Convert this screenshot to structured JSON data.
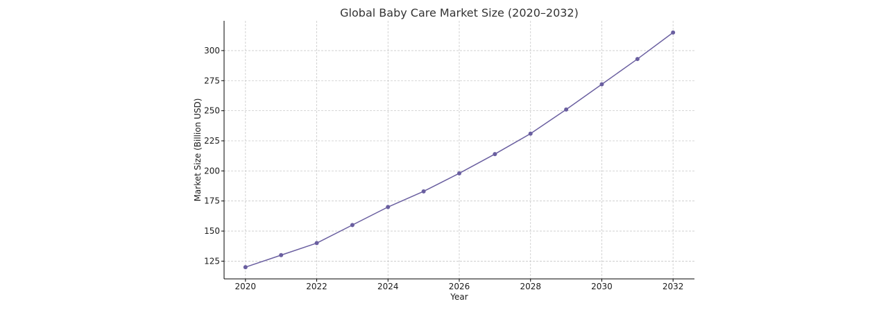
{
  "chart_data": {
    "type": "line",
    "title": "Global Baby Care Market Size (2020–2032)",
    "xlabel": "Year",
    "ylabel": "Market Size (Billion USD)",
    "x": [
      2020,
      2021,
      2022,
      2023,
      2024,
      2025,
      2026,
      2027,
      2028,
      2029,
      2030,
      2031,
      2032
    ],
    "series": [
      {
        "values": [
          120,
          130,
          140,
          155,
          170,
          183,
          198,
          214,
          231,
          251,
          272,
          293,
          315
        ]
      }
    ],
    "x_ticks": [
      "2020",
      "2022",
      "2024",
      "2026",
      "2028",
      "2030",
      "2032"
    ],
    "y_ticks": [
      "125",
      "150",
      "175",
      "200",
      "225",
      "250",
      "275",
      "300"
    ],
    "xlim": [
      2019.4,
      2032.6
    ],
    "ylim": [
      110.25,
      324.75
    ],
    "grid": true,
    "line_color": "#6a5fa0",
    "marker_color": "#6a5fa0"
  }
}
